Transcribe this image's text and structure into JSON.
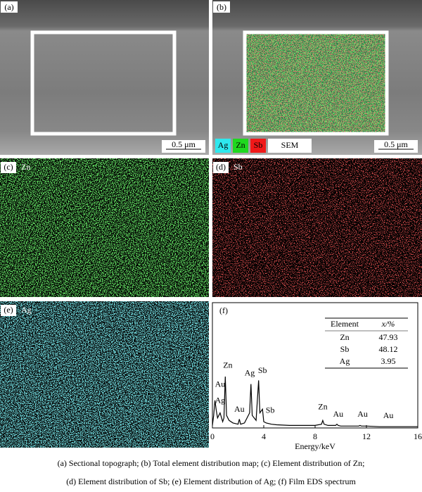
{
  "panels": [
    {
      "label": "(a)",
      "scale": "0.5 μm"
    },
    {
      "label": "(b)",
      "legend": [
        "Ag",
        "Zn",
        "Sb",
        "SEM"
      ],
      "scale": "0.5 μm"
    },
    {
      "label": "(c)",
      "element": "Zn"
    },
    {
      "label": "(d)",
      "element": "Sb"
    },
    {
      "label": "(e)",
      "element": "Ag"
    }
  ],
  "chart_data": {
    "type": "line",
    "label": "(f)",
    "x_label": "Energy/keV",
    "xlim": [
      0,
      16
    ],
    "xticks": [
      0,
      4,
      8,
      12,
      16
    ],
    "ylim": [
      0,
      100
    ],
    "x": [
      0,
      0.1,
      0.2,
      0.3,
      0.4,
      0.6,
      0.8,
      0.9,
      1.0,
      1.1,
      1.3,
      1.6,
      2.0,
      2.1,
      2.2,
      2.5,
      2.9,
      3.0,
      3.1,
      3.4,
      3.6,
      3.7,
      3.9,
      4.0,
      4.2,
      4.6,
      5,
      6,
      7,
      8,
      8.5,
      8.6,
      8.7,
      9,
      9.6,
      9.7,
      9.8,
      10,
      11,
      11.4,
      11.5,
      11.6,
      12,
      13,
      14,
      15,
      16
    ],
    "values": [
      2,
      10,
      22,
      14,
      8,
      12,
      5,
      8,
      41,
      10,
      6,
      4,
      3,
      7,
      3,
      4,
      12,
      35,
      10,
      6,
      38,
      12,
      15,
      5,
      4,
      3,
      2.5,
      2,
      2,
      2,
      3,
      6,
      3,
      2,
      2,
      3,
      2,
      1.5,
      1.5,
      1.5,
      2,
      1.5,
      1.5,
      1,
      1,
      1,
      1
    ],
    "annotations": [
      {
        "text": "Au",
        "x": 0.6,
        "y": 30
      },
      {
        "text": "Ag",
        "x": 0.6,
        "y": 17
      },
      {
        "text": "Zn",
        "x": 1.2,
        "y": 45
      },
      {
        "text": "Au",
        "x": 2.1,
        "y": 10
      },
      {
        "text": "Ag",
        "x": 2.9,
        "y": 39
      },
      {
        "text": "Sb",
        "x": 3.9,
        "y": 41
      },
      {
        "text": "Sb",
        "x": 4.5,
        "y": 9
      },
      {
        "text": "Zn",
        "x": 8.6,
        "y": 12
      },
      {
        "text": "Au",
        "x": 9.8,
        "y": 6
      },
      {
        "text": "Au",
        "x": 11.7,
        "y": 6
      },
      {
        "text": "Au",
        "x": 13.7,
        "y": 5
      }
    ],
    "table": {
      "header": [
        "Element",
        "x/%"
      ],
      "rows": [
        [
          "Zn",
          47.93
        ],
        [
          "Sb",
          48.12
        ],
        [
          "Ag",
          3.95
        ]
      ]
    }
  },
  "caption": [
    "(a) Sectional topograph; (b) Total element distribution map; (c) Element distribution of Zn;",
    "(d) Element distribution of Sb; (e) Element distribution of Ag; (f) Film EDS spectrum"
  ]
}
